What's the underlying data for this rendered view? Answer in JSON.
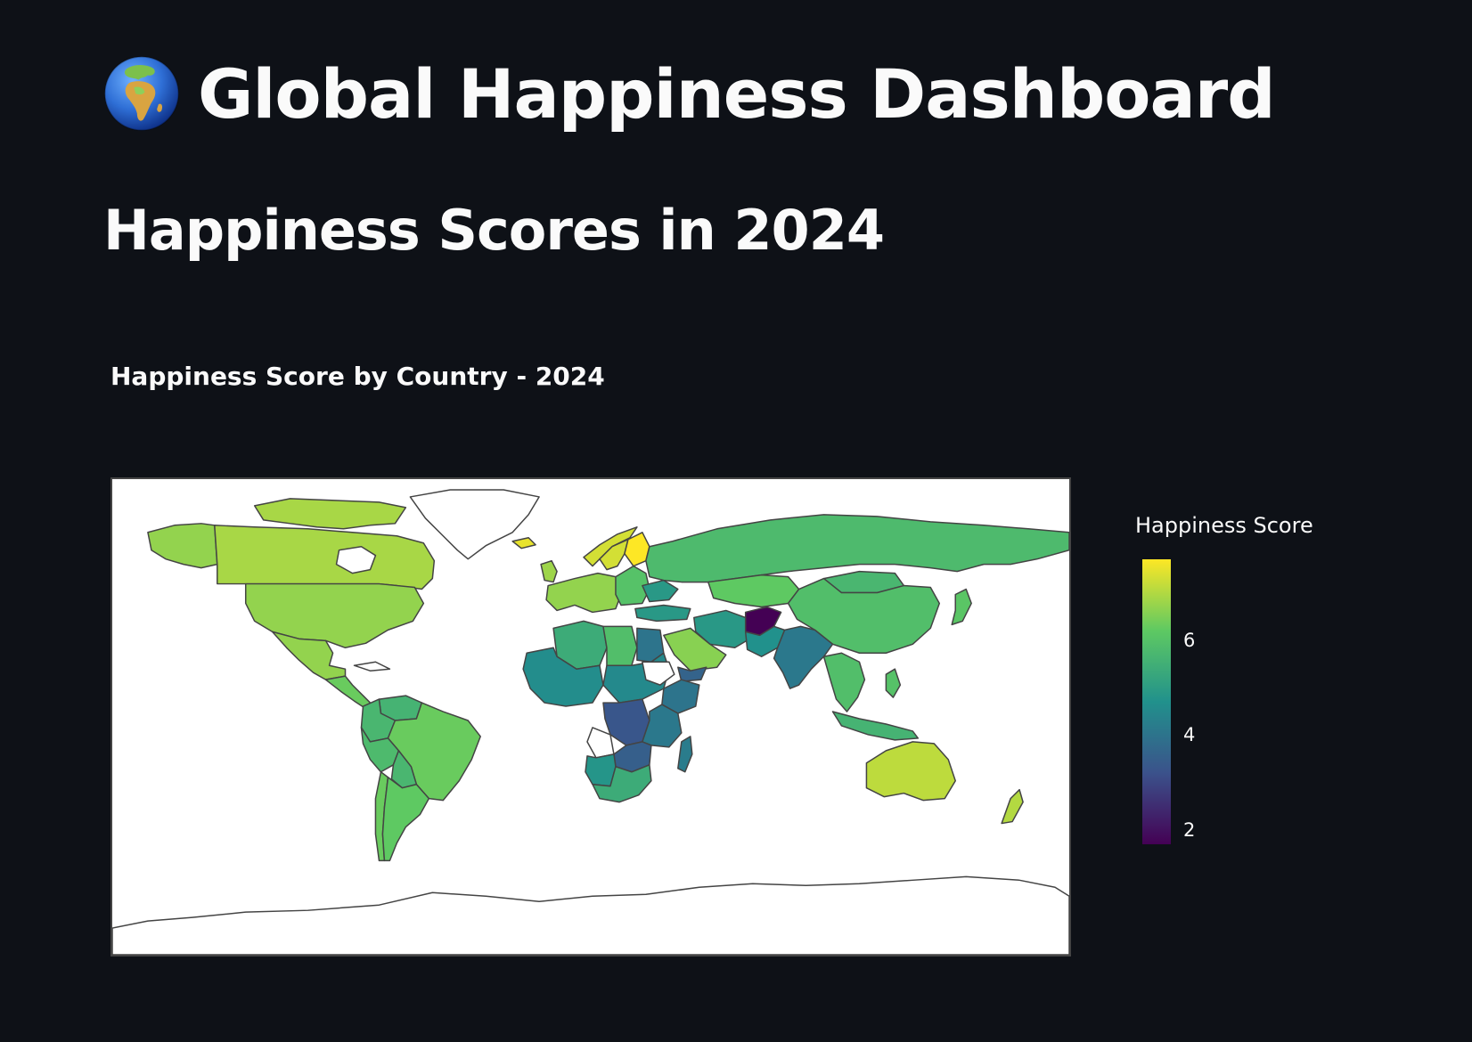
{
  "header": {
    "title": "Global Happiness Dashboard",
    "icon": "globe-europe-africa-icon"
  },
  "section": {
    "title": "Happiness Scores in 2024"
  },
  "map": {
    "title": "Happiness Score by Country - 2024",
    "colorbar": {
      "title": "Happiness Score",
      "colorscale": "viridis",
      "range": [
        1.7,
        7.7
      ],
      "ticks": [
        {
          "value": 2,
          "label": "2"
        },
        {
          "value": 4,
          "label": "4"
        },
        {
          "value": 6,
          "label": "6"
        }
      ],
      "colors": [
        "#440154",
        "#3b528b",
        "#21918c",
        "#5ec962",
        "#fde725"
      ]
    },
    "regions": [
      {
        "name": "Canada",
        "score": 6.9
      },
      {
        "name": "United States",
        "score": 6.7
      },
      {
        "name": "Mexico",
        "score": 6.7
      },
      {
        "name": "Central America",
        "score": 6.3
      },
      {
        "name": "Brazil",
        "score": 6.3
      },
      {
        "name": "Argentina",
        "score": 6.2
      },
      {
        "name": "Colombia",
        "score": 5.7
      },
      {
        "name": "Peru",
        "score": 5.8
      },
      {
        "name": "Bolivia",
        "score": 5.7
      },
      {
        "name": "Chile",
        "score": 6.3
      },
      {
        "name": "Venezuela",
        "score": 5.6
      },
      {
        "name": "Western Europe",
        "score": 6.7
      },
      {
        "name": "Eastern Europe",
        "score": 6.0
      },
      {
        "name": "Ukraine",
        "score": 4.9
      },
      {
        "name": "Norway",
        "score": 7.3
      },
      {
        "name": "Sweden",
        "score": 7.3
      },
      {
        "name": "Finland",
        "score": 7.7
      },
      {
        "name": "Iceland",
        "score": 7.5
      },
      {
        "name": "United Kingdom",
        "score": 6.8
      },
      {
        "name": "Russia",
        "score": 5.8
      },
      {
        "name": "Kazakhstan",
        "score": 6.2
      },
      {
        "name": "Mongolia",
        "score": 5.7
      },
      {
        "name": "China",
        "score": 5.9
      },
      {
        "name": "Japan",
        "score": 6.1
      },
      {
        "name": "Turkey",
        "score": 4.9
      },
      {
        "name": "Iran",
        "score": 4.9
      },
      {
        "name": "Afghanistan",
        "score": 1.7
      },
      {
        "name": "Pakistan",
        "score": 4.7
      },
      {
        "name": "India",
        "score": 4.1
      },
      {
        "name": "Saudi Arabia",
        "score": 6.6
      },
      {
        "name": "Yemen",
        "score": 3.6
      },
      {
        "name": "Egypt",
        "score": 4.0
      },
      {
        "name": "Algeria",
        "score": 5.4
      },
      {
        "name": "Libya",
        "score": 5.9
      },
      {
        "name": "West Africa",
        "score": 4.6
      },
      {
        "name": "Central Africa",
        "score": 4.5
      },
      {
        "name": "Ethiopia",
        "score": 4.0
      },
      {
        "name": "DR Congo",
        "score": 3.3
      },
      {
        "name": "East Africa",
        "score": 4.1
      },
      {
        "name": "Zambia",
        "score": 3.5
      },
      {
        "name": "Namibia",
        "score": 4.8
      },
      {
        "name": "South Africa",
        "score": 5.4
      },
      {
        "name": "Madagascar",
        "score": 4.2
      },
      {
        "name": "Southeast Asia",
        "score": 5.9
      },
      {
        "name": "Indonesia",
        "score": 5.6
      },
      {
        "name": "Philippines",
        "score": 6.0
      },
      {
        "name": "Australia",
        "score": 7.1
      },
      {
        "name": "New Zealand",
        "score": 7.0
      }
    ]
  }
}
